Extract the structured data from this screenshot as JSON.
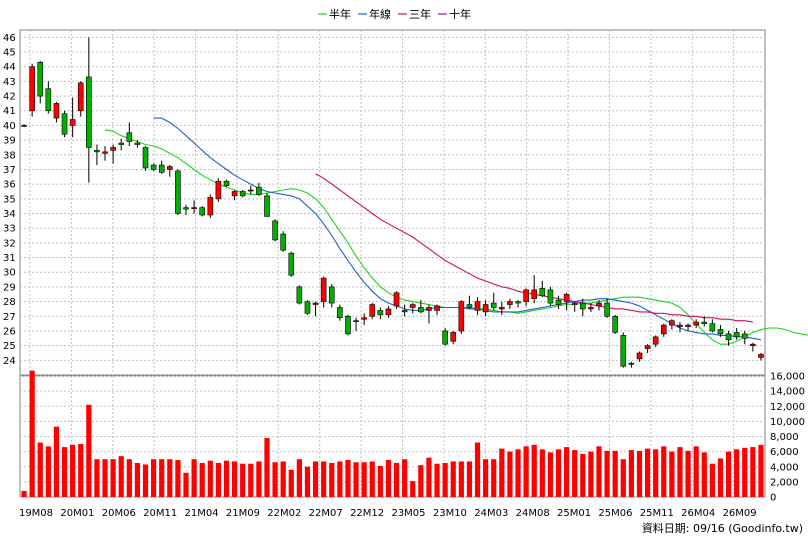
{
  "legend": [
    {
      "label": "半年",
      "color": "#1ed41e"
    },
    {
      "label": "年線",
      "color": "#1f5fd0"
    },
    {
      "label": "三年",
      "color": "#d0105a"
    },
    {
      "label": "十年",
      "color": "#8a1a8a"
    }
  ],
  "source_label": "資料日期: 09/16  (Goodinfo.tw)",
  "colors": {
    "up": "#ff0000",
    "down": "#00b000",
    "volume": "#ff0000",
    "grid": "#c0c0c0"
  },
  "chart_data": [
    {
      "type": "candlestick",
      "title": "",
      "ylim": [
        23,
        46.5
      ],
      "y_ticks": [
        24,
        25,
        26,
        27,
        28,
        29,
        30,
        31,
        32,
        33,
        34,
        35,
        36,
        37,
        38,
        39,
        40,
        41,
        42,
        43,
        44,
        45,
        46
      ],
      "x_tick_labels": [
        "19M08",
        "20M01",
        "20M06",
        "20M11",
        "21M04",
        "21M09",
        "22M02",
        "22M07",
        "22M12",
        "23M05",
        "23M10",
        "24M03",
        "24M08",
        "25M01",
        "25M06",
        "25M11",
        "26M04",
        "26M09"
      ],
      "ohlc": [
        [
          40.0,
          40.1,
          39.9,
          40.0
        ],
        [
          41.0,
          44.2,
          40.6,
          44.0
        ],
        [
          44.3,
          44.4,
          41.5,
          42.0
        ],
        [
          42.5,
          43.0,
          40.8,
          41.0
        ],
        [
          40.5,
          41.6,
          40.2,
          41.5
        ],
        [
          40.8,
          41.0,
          39.2,
          39.4
        ],
        [
          40.0,
          41.9,
          39.2,
          40.4
        ],
        [
          41.0,
          43.0,
          40.6,
          42.9
        ],
        [
          43.3,
          46.0,
          36.1,
          38.5
        ],
        [
          38.3,
          38.7,
          37.3,
          38.2
        ],
        [
          38.1,
          38.6,
          37.6,
          38.2
        ],
        [
          38.3,
          38.7,
          37.4,
          38.5
        ],
        [
          38.8,
          39.1,
          38.3,
          38.7
        ],
        [
          39.5,
          40.2,
          38.6,
          38.9
        ],
        [
          38.8,
          39.0,
          38.5,
          38.7
        ],
        [
          38.5,
          38.6,
          36.9,
          37.1
        ],
        [
          37.3,
          37.4,
          36.9,
          37.0
        ],
        [
          37.3,
          37.6,
          36.7,
          36.8
        ],
        [
          37.0,
          37.3,
          36.5,
          37.2
        ],
        [
          36.9,
          37.0,
          33.9,
          34.0
        ],
        [
          34.4,
          34.6,
          33.9,
          34.3
        ],
        [
          34.4,
          34.9,
          34.0,
          34.4
        ],
        [
          34.4,
          34.5,
          33.8,
          33.9
        ],
        [
          33.9,
          35.3,
          33.7,
          35.1
        ],
        [
          35.0,
          36.4,
          34.8,
          36.2
        ],
        [
          36.2,
          36.3,
          35.8,
          35.9
        ],
        [
          35.2,
          35.6,
          34.9,
          35.5
        ],
        [
          35.5,
          35.6,
          35.1,
          35.2
        ],
        [
          35.6,
          35.9,
          35.3,
          35.6
        ],
        [
          35.8,
          36.1,
          35.2,
          35.3
        ],
        [
          35.2,
          35.4,
          33.8,
          33.8
        ],
        [
          33.5,
          33.6,
          32.1,
          32.2
        ],
        [
          32.6,
          32.8,
          31.4,
          31.5
        ],
        [
          31.3,
          31.4,
          29.7,
          29.8
        ],
        [
          29.0,
          29.1,
          27.8,
          27.9
        ],
        [
          28.0,
          28.1,
          27.1,
          27.2
        ],
        [
          27.8,
          28.0,
          27.0,
          27.9
        ],
        [
          28.0,
          29.7,
          27.6,
          29.6
        ],
        [
          29.0,
          29.2,
          27.6,
          27.9
        ],
        [
          27.6,
          27.8,
          26.7,
          26.9
        ],
        [
          27.0,
          27.1,
          25.7,
          25.8
        ],
        [
          26.7,
          26.9,
          26.0,
          26.7
        ],
        [
          26.8,
          27.2,
          26.4,
          26.9
        ],
        [
          27.0,
          27.9,
          26.8,
          27.8
        ],
        [
          27.4,
          27.6,
          26.8,
          27.1
        ],
        [
          27.1,
          27.7,
          26.9,
          27.5
        ],
        [
          27.7,
          28.7,
          27.5,
          28.6
        ],
        [
          27.4,
          27.8,
          27.0,
          27.3
        ],
        [
          27.6,
          27.9,
          27.2,
          27.8
        ],
        [
          27.6,
          28.1,
          27.2,
          27.3
        ],
        [
          27.4,
          27.8,
          26.5,
          27.6
        ],
        [
          27.4,
          27.8,
          27.1,
          27.7
        ],
        [
          26.0,
          26.2,
          25.0,
          25.1
        ],
        [
          25.3,
          26.0,
          25.1,
          25.9
        ],
        [
          26.0,
          28.1,
          25.8,
          28.0
        ],
        [
          27.8,
          28.4,
          27.5,
          27.6
        ],
        [
          27.4,
          28.3,
          27.1,
          28.0
        ],
        [
          27.3,
          28.1,
          27.0,
          27.8
        ],
        [
          27.9,
          28.6,
          27.4,
          27.6
        ],
        [
          27.5,
          28.0,
          27.1,
          27.6
        ],
        [
          27.8,
          28.2,
          27.5,
          28.0
        ],
        [
          28.0,
          28.1,
          27.6,
          27.9
        ],
        [
          28.0,
          28.9,
          27.7,
          28.8
        ],
        [
          28.2,
          29.8,
          27.9,
          28.8
        ],
        [
          28.9,
          29.4,
          28.3,
          28.4
        ],
        [
          28.8,
          29.0,
          27.7,
          27.9
        ],
        [
          28.1,
          28.4,
          27.5,
          27.8
        ],
        [
          28.0,
          28.6,
          27.4,
          28.5
        ],
        [
          27.8,
          28.0,
          27.3,
          27.9
        ],
        [
          27.9,
          28.2,
          27.0,
          27.5
        ],
        [
          27.5,
          27.9,
          27.3,
          27.6
        ],
        [
          27.7,
          28.1,
          27.4,
          27.9
        ],
        [
          27.9,
          28.2,
          26.9,
          27.0
        ],
        [
          27.0,
          27.1,
          25.8,
          25.9
        ],
        [
          25.7,
          25.9,
          23.5,
          23.6
        ],
        [
          23.8,
          23.9,
          23.5,
          23.8
        ],
        [
          24.1,
          24.6,
          23.9,
          24.5
        ],
        [
          24.8,
          25.1,
          24.5,
          25.0
        ],
        [
          25.1,
          25.7,
          24.9,
          25.6
        ],
        [
          25.8,
          26.5,
          25.6,
          26.4
        ],
        [
          26.4,
          26.8,
          26.1,
          26.7
        ],
        [
          26.3,
          26.6,
          25.9,
          26.4
        ],
        [
          26.3,
          26.5,
          26.0,
          26.4
        ],
        [
          26.4,
          26.8,
          26.2,
          26.6
        ],
        [
          26.6,
          27.0,
          26.3,
          26.5
        ],
        [
          26.5,
          26.8,
          25.9,
          26.0
        ],
        [
          26.1,
          26.4,
          25.6,
          25.8
        ],
        [
          25.8,
          26.0,
          25.0,
          25.4
        ],
        [
          25.9,
          26.2,
          25.4,
          25.6
        ],
        [
          25.8,
          26.0,
          25.1,
          25.5
        ],
        [
          25.0,
          25.2,
          24.6,
          25.1
        ],
        [
          24.2,
          24.5,
          24.0,
          24.4
        ]
      ],
      "series": [
        {
          "name": "半年",
          "start": 10,
          "values": [
            39.7,
            39.6,
            39.3,
            39.1,
            38.9,
            38.7,
            38.6,
            38.4,
            38.1,
            37.8,
            37.4,
            37.0,
            36.6,
            36.3,
            36.0,
            35.8,
            35.6,
            35.4,
            35.3,
            35.3,
            35.4,
            35.5,
            35.6,
            35.7,
            35.6,
            35.4,
            35.0,
            34.4,
            33.6,
            32.8,
            32.0,
            31.1,
            30.3,
            29.6,
            29.0,
            28.6,
            28.3,
            28.1,
            28.0,
            27.9,
            27.8,
            27.7,
            27.6,
            27.6,
            27.6,
            27.6,
            27.5,
            27.5,
            27.4,
            27.3,
            27.3,
            27.2,
            27.3,
            27.4,
            27.5,
            27.6,
            27.7,
            27.8,
            27.8,
            27.9,
            27.9,
            28.0,
            28.1,
            28.2,
            28.3,
            28.3,
            28.3,
            28.2,
            28.1,
            28.0,
            27.9,
            27.6,
            27.1,
            26.5,
            25.9,
            25.4,
            25.1,
            25.1,
            25.3,
            25.6,
            25.9,
            26.1,
            26.2,
            26.2,
            26.1,
            25.9,
            25.8,
            25.7,
            25.6
          ]
        },
        {
          "name": "年線",
          "start": 16,
          "values": [
            40.5,
            40.5,
            40.2,
            39.8,
            39.3,
            38.8,
            38.3,
            37.8,
            37.4,
            37.0,
            36.6,
            36.3,
            36.0,
            35.7,
            35.5,
            35.4,
            35.3,
            35.2,
            35.0,
            34.5,
            34.0,
            33.3,
            32.5,
            31.6,
            30.8,
            30.0,
            29.3,
            28.7,
            28.2,
            27.9,
            27.7,
            27.5,
            27.4,
            27.4,
            27.5,
            27.6,
            27.6,
            27.6,
            27.6,
            27.5,
            27.5,
            27.4,
            27.3,
            27.3,
            27.3,
            27.3,
            27.4,
            27.5,
            27.6,
            27.7,
            27.8,
            27.9,
            28.0,
            28.1,
            28.1,
            28.2,
            28.2,
            28.1,
            28.0,
            27.9,
            27.7,
            27.4,
            27.1,
            26.8,
            26.5,
            26.2,
            26.0,
            25.9,
            25.8,
            25.8,
            25.7,
            25.7,
            25.6,
            25.6,
            25.5,
            25.4
          ]
        },
        {
          "name": "三年",
          "start": 36,
          "values": [
            36.7,
            36.4,
            36.0,
            35.6,
            35.2,
            34.8,
            34.4,
            34.0,
            33.6,
            33.3,
            33.0,
            32.7,
            32.4,
            32.0,
            31.6,
            31.2,
            30.8,
            30.5,
            30.2,
            29.9,
            29.6,
            29.4,
            29.2,
            29.0,
            28.9,
            28.7,
            28.6,
            28.5,
            28.4,
            28.3,
            28.2,
            28.1,
            28.0,
            27.9,
            27.8,
            27.7,
            27.6,
            27.5,
            27.5,
            27.4,
            27.3,
            27.3,
            27.2,
            27.2,
            27.1,
            27.1,
            27.0,
            27.0,
            26.9,
            26.9,
            26.8,
            26.8,
            26.7,
            26.7,
            26.6
          ]
        }
      ]
    },
    {
      "type": "bar",
      "title": "",
      "ylim": [
        0,
        16000
      ],
      "y_ticks": [
        0,
        2000,
        4000,
        6000,
        8000,
        10000,
        12000,
        14000,
        16000
      ],
      "y_tick_labels": [
        "0",
        "2,000",
        "4,000",
        "6,000",
        "8,000",
        "10,000",
        "12,000",
        "14,000",
        "16,000"
      ],
      "values": [
        800,
        16700,
        7200,
        6700,
        9300,
        6600,
        6900,
        7000,
        12200,
        5000,
        5000,
        5000,
        5400,
        5000,
        4500,
        4300,
        5000,
        5000,
        5000,
        4900,
        3200,
        5000,
        4500,
        4800,
        4500,
        4800,
        4700,
        4400,
        4400,
        4700,
        7800,
        4600,
        4700,
        3600,
        5000,
        4000,
        4700,
        4700,
        4500,
        4700,
        4900,
        4600,
        4600,
        4700,
        4100,
        4900,
        4500,
        5000,
        2100,
        4200,
        5200,
        4400,
        4500,
        4700,
        4700,
        4700,
        7200,
        5000,
        5000,
        6400,
        6000,
        6300,
        6700,
        6900,
        6300,
        5900,
        6300,
        6600,
        6200,
        5700,
        6000,
        6700,
        6100,
        6100,
        5000,
        6200,
        6100,
        6400,
        6300,
        6700,
        6000,
        6600,
        6100,
        6700,
        5900,
        4400,
        5100,
        6000,
        6300,
        6500,
        6600,
        6900,
        4300
      ]
    }
  ]
}
